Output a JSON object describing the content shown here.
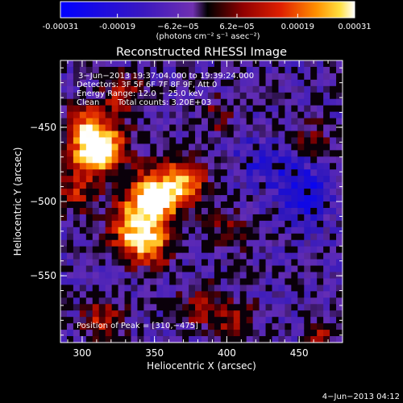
{
  "colorbar": {
    "ticks": [
      "-0.00031",
      "-0.00019",
      "−6.2e−05",
      "6.2e−05",
      "0.00019",
      "0.00031"
    ],
    "tick_values": [
      -0.00031,
      -0.00019,
      -6.2e-05,
      6.2e-05,
      0.00019,
      0.00031
    ],
    "unit_label": "(photons cm⁻² s⁻¹ asec⁻²)",
    "range": [
      -0.00031,
      0.00031
    ]
  },
  "chart_data": {
    "type": "heatmap",
    "title": "Reconstructed RHESSI Image",
    "xlabel": "Heliocentric X (arcsec)",
    "ylabel": "Heliocentric Y (arcsec)",
    "xlim": [
      285,
      480
    ],
    "ylim": [
      -595,
      -405
    ],
    "xticks": [
      "300",
      "350",
      "400",
      "450"
    ],
    "xtick_values": [
      300,
      350,
      400,
      450
    ],
    "yticks": [
      "−450",
      "−500",
      "−550"
    ],
    "ytick_values": [
      -450,
      -500,
      -550
    ],
    "peak_position": [
      310,
      -475
    ],
    "colormap": [
      "#0000ff",
      "#2010b0",
      "#6a2ab8",
      "#000000",
      "#8a0000",
      "#e02000",
      "#ff8c00",
      "#ffe040",
      "#ffffff"
    ],
    "annotations": {
      "time": "3−Jun−2013 19:37:04.000 to 19:39:24.000",
      "detectors": "Detectors: 3F 5F 6F 7F 8F 9F, Att 0",
      "energy": "Energy Range: 12.0 − 25.0 keV",
      "clean": "Clean",
      "counts": "Total counts: 3.20E+03",
      "peak": "Position of Peak = [310,−475]"
    }
  },
  "footer_date": "4−Jun−2013 04:12"
}
